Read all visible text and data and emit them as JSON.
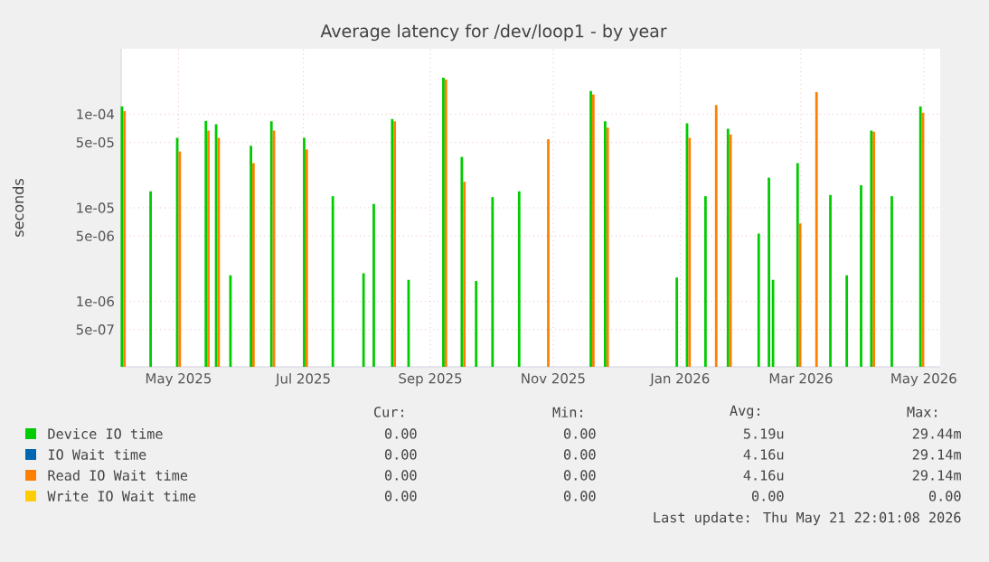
{
  "chart_data": {
    "type": "bar",
    "title": "Average latency for /dev/loop1 - by year",
    "ylabel": "seconds",
    "log": true,
    "stacked": false,
    "grid": true,
    "legend": "bottom",
    "xlim": [
      "2025-04-16",
      "2026-05-21"
    ],
    "xticks": [
      {
        "value": "2025-05-14",
        "label": "May 2025"
      },
      {
        "value": "2025-07-14",
        "label": "Jul 2025"
      },
      {
        "value": "2025-09-14",
        "label": "Sep 2025"
      },
      {
        "value": "2025-11-13",
        "label": "Nov 2025"
      },
      {
        "value": "2026-01-14",
        "label": "Jan 2026"
      },
      {
        "value": "2026-03-14",
        "label": "Mar 2026"
      },
      {
        "value": "2026-05-13",
        "label": "May 2026"
      }
    ],
    "ylim": [
      2e-07,
      0.0005
    ],
    "yticks": [
      {
        "value": 0.0001,
        "label": "1e-04"
      },
      {
        "value": 5e-05,
        "label": "5e-05"
      },
      {
        "value": 1e-05,
        "label": "1e-05"
      },
      {
        "value": 5e-06,
        "label": "5e-06"
      },
      {
        "value": 1e-06,
        "label": "1e-06"
      },
      {
        "value": 5e-07,
        "label": "5e-07"
      }
    ],
    "series": [
      {
        "name": "Device IO time",
        "color": "#00cc00",
        "x": [
          "2025-04-17",
          "2025-05-01",
          "2025-05-14",
          "2025-05-28",
          "2025-06-02",
          "2025-06-09",
          "2025-06-19",
          "2025-06-29",
          "2025-07-15",
          "2025-07-29",
          "2025-08-13",
          "2025-08-18",
          "2025-08-27",
          "2025-09-04",
          "2025-09-21",
          "2025-09-30",
          "2025-10-07",
          "2025-10-15",
          "2025-10-28",
          "2025-12-02",
          "2025-12-09",
          "2026-01-13",
          "2026-01-18",
          "2026-01-27",
          "2026-02-07",
          "2026-02-22",
          "2026-02-27",
          "2026-03-01",
          "2026-03-13",
          "2026-03-29",
          "2026-04-06",
          "2026-04-13",
          "2026-04-18",
          "2026-04-28",
          "2026-05-12"
        ],
        "values": [
          0.000121,
          1.5e-05,
          5.6e-05,
          8.5e-05,
          7.8e-05,
          1.9e-06,
          4.6e-05,
          8.4e-05,
          5.6e-05,
          1.33e-05,
          2e-06,
          1.1e-05,
          8.9e-05,
          1.7e-06,
          0.000245,
          3.5e-05,
          1.65e-06,
          1.3e-05,
          1.5e-05,
          0.000177,
          8.4e-05,
          1.8e-06,
          8e-05,
          1.33e-05,
          7e-05,
          5.3e-06,
          2.1e-05,
          1.7e-06,
          3e-05,
          1.37e-05,
          1.9e-06,
          1.74e-05,
          6.7e-05,
          1.33e-05,
          0.000121
        ]
      },
      {
        "name": "IO Wait time",
        "color": "#0066b3"
      },
      {
        "name": "Read IO Wait time",
        "color": "#ff8000",
        "x": [
          "2025-04-17",
          "2025-05-14",
          "2025-05-28",
          "2025-06-02",
          "2025-06-19",
          "2025-06-29",
          "2025-07-15",
          "2025-08-27",
          "2025-09-21",
          "2025-09-30",
          "2025-11-10",
          "2025-12-02",
          "2025-12-09",
          "2026-01-18",
          "2026-01-31",
          "2026-02-07",
          "2026-03-13",
          "2026-03-21",
          "2026-04-18",
          "2026-05-12"
        ],
        "values": [
          0.000108,
          4e-05,
          6.7e-05,
          5.6e-05,
          3e-05,
          6.7e-05,
          4.2e-05,
          8.4e-05,
          0.000235,
          1.9e-05,
          5.4e-05,
          0.000163,
          7.2e-05,
          5.6e-05,
          0.000125,
          6.1e-05,
          6.8e-06,
          0.000172,
          6.5e-05,
          0.000104
        ]
      },
      {
        "name": "Write IO Wait time",
        "color": "#ffcc00"
      }
    ],
    "annotations": [
      "Cur:",
      "Min:",
      "Avg:",
      "Max:",
      "0.00",
      "0.00",
      "5.19u",
      "29.44m",
      "0.00",
      "0.00",
      "4.16u",
      "29.14m",
      "0.00",
      "0.00",
      "4.16u",
      "29.14m",
      "0.00",
      "0.00",
      "0.00",
      "0.00",
      "Last update: Thu May 21 22:01:08 2026"
    ]
  }
}
